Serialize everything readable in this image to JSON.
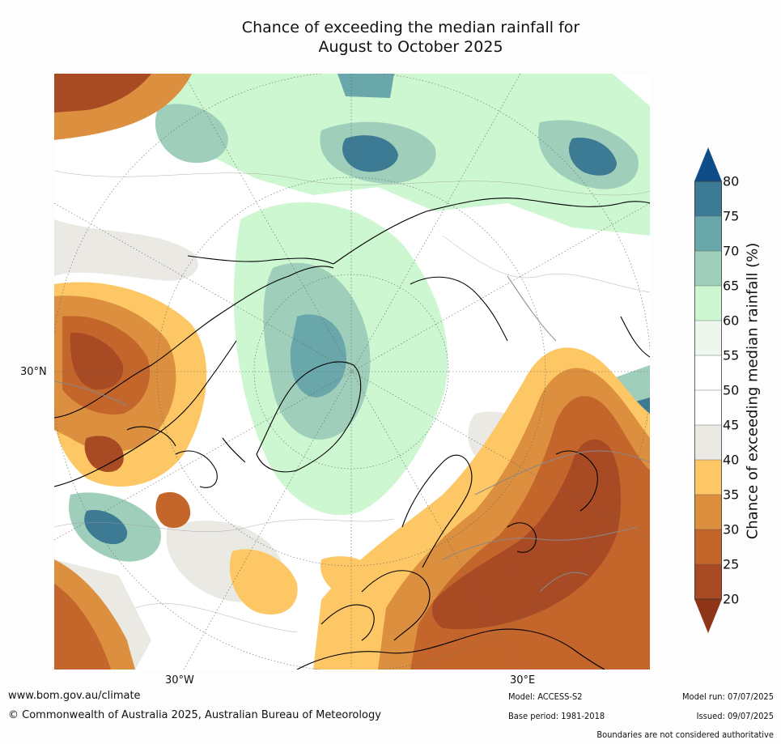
{
  "title": {
    "line1": "Chance of exceeding the median rainfall for",
    "line2": "August to October 2025"
  },
  "map": {
    "lat_label": "30°N",
    "lon_labels": [
      "30°W",
      "30°E"
    ]
  },
  "colorbar": {
    "label": "Chance of exceeding median rainfall (%)",
    "ticks": [
      "80",
      "75",
      "70",
      "65",
      "60",
      "55",
      "50",
      "45",
      "40",
      "35",
      "30",
      "25",
      "20"
    ],
    "colors": {
      "over": "#0f4d8a",
      "75-80": "#3d7a94",
      "70-75": "#6aa7aa",
      "65-70": "#9fcfbb",
      "60-65": "#cdf7d1",
      "55-60": "#eef7ee",
      "50-55": "#ffffff",
      "45-50": "#ffffff",
      "40-45": "#ebe9e4",
      "35-40": "#fcc764",
      "30-35": "#dc8f3e",
      "25-30": "#c4662c",
      "20-25": "#a84b25",
      "under": "#8e3519"
    }
  },
  "footer": {
    "website": "www.bom.gov.au/climate",
    "copyright": "© Commonwealth of Australia 2025, Australian Bureau of Meteorology",
    "model": "Model: ACCESS-S2",
    "base_period": "Base period: 1981-2018",
    "model_run": "Model run: 07/07/2025",
    "issued": "Issued: 09/07/2025",
    "disclaimer": "Boundaries are not considered authoritative"
  }
}
